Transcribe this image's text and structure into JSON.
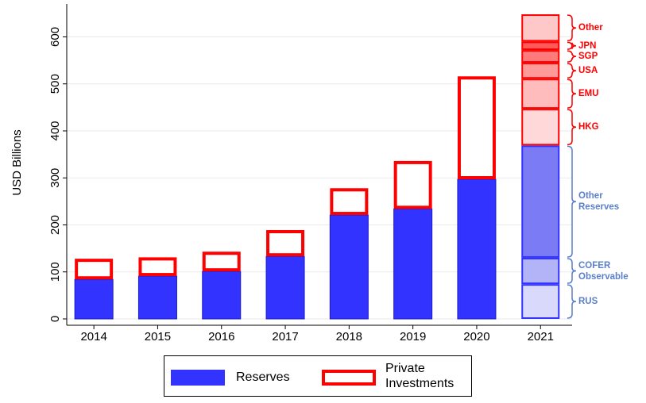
{
  "chart_data": {
    "type": "bar",
    "y_label": "USD Billions",
    "categories": [
      "2014",
      "2015",
      "2016",
      "2017",
      "2018",
      "2019",
      "2020",
      "2021"
    ],
    "series": [
      {
        "name": "Reserves",
        "color": "#3333ff",
        "values": [
          84,
          91,
          101,
          133,
          221,
          234,
          297,
          null
        ]
      },
      {
        "name": "Private Investments",
        "color": "#ff0000",
        "values": [
          44,
          40,
          42,
          56,
          57,
          102,
          219,
          null
        ]
      }
    ],
    "segments": [
      {
        "name": "RUS",
        "value": 74,
        "color": "#d9d9fb",
        "stroke": "#3333ff",
        "label_color": "#5b7fc9"
      },
      {
        "name": "COFER Observable",
        "value": 56,
        "color": "#b3b3f8",
        "stroke": "#3333ff",
        "label_color": "#5b7fc9"
      },
      {
        "name": "Other Reserves",
        "value": 239,
        "color": "#7b7bf5",
        "stroke": "#3333ff",
        "label_color": "#5b7fc9"
      },
      {
        "name": "HKG",
        "value": 78,
        "color": "#ffd9d9",
        "stroke": "#ff0000",
        "label_color": "#ff0000"
      },
      {
        "name": "EMU",
        "value": 64,
        "color": "#ffbcbc",
        "stroke": "#ff0000",
        "label_color": "#ff0000"
      },
      {
        "name": "USA",
        "value": 34,
        "color": "#ff9a9a",
        "stroke": "#ff0000",
        "label_color": "#ff0000"
      },
      {
        "name": "SGP",
        "value": 27,
        "color": "#ff7a7a",
        "stroke": "#ff0000",
        "label_color": "#ff0000"
      },
      {
        "name": "JPN",
        "value": 18,
        "color": "#ff5a5a",
        "stroke": "#ff0000",
        "label_color": "#ff0000"
      },
      {
        "name": "Other",
        "value": 58,
        "color": "#ffc8c8",
        "stroke": "#ff0000",
        "label_color": "#ff0000"
      }
    ],
    "ylim": [
      0,
      670
    ],
    "yticks": [
      0,
      100,
      200,
      300,
      400,
      500,
      600
    ],
    "grid": true
  }
}
